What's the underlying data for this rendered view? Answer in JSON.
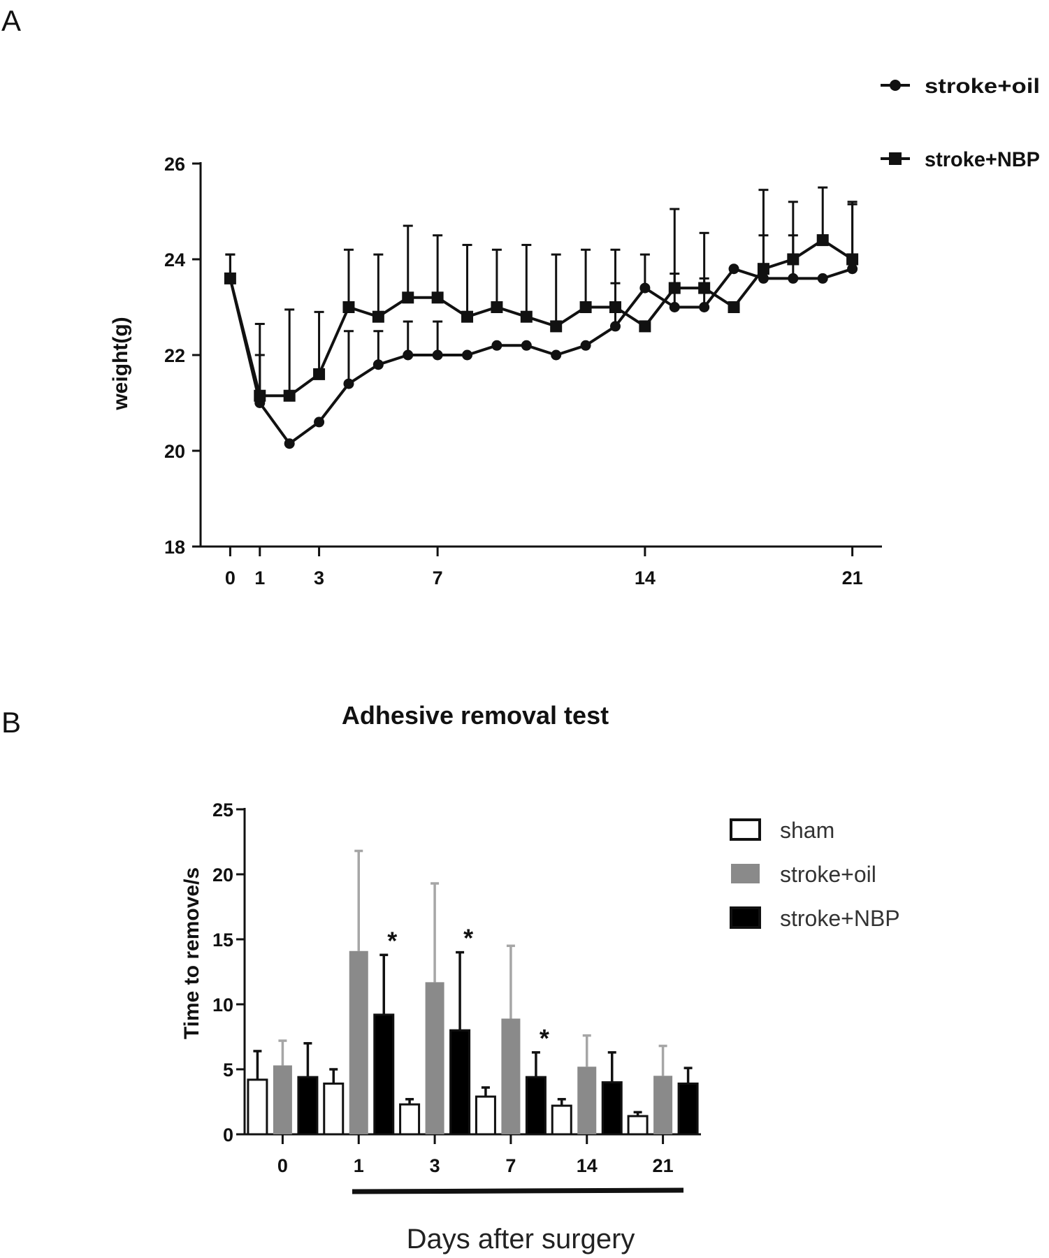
{
  "panel_a_letter": "A",
  "panel_b_letter": "B",
  "colors": {
    "sham": "#ffffff",
    "stroke_oil": "#8a8a8a",
    "stroke_nbp": "#000000",
    "line": "#111111"
  },
  "chart_data": [
    {
      "type": "line",
      "ylabel": "weight(g)",
      "xlabel": "",
      "ylim": [
        18,
        26
      ],
      "yticks": [
        18,
        20,
        22,
        24,
        26
      ],
      "xlim": [
        -1,
        22
      ],
      "xticks": [
        0,
        1,
        3,
        7,
        14,
        21
      ],
      "legend_position": "top-right",
      "x": [
        0,
        1,
        2,
        3,
        4,
        5,
        6,
        7,
        8,
        9,
        10,
        11,
        12,
        13,
        14,
        15,
        16,
        17,
        18,
        19,
        20,
        21
      ],
      "series": [
        {
          "name": "stroke+oil",
          "marker": "circle",
          "values": [
            23.6,
            21.0,
            20.15,
            20.6,
            21.4,
            21.8,
            22.0,
            22.0,
            22.0,
            22.2,
            22.2,
            22.0,
            22.2,
            22.6,
            23.4,
            23.0,
            23.0,
            23.8,
            23.6,
            23.6,
            23.6,
            23.8
          ],
          "errors": [
            0.5,
            1.0,
            0,
            0,
            1.1,
            0.7,
            0.7,
            0.7,
            0,
            0,
            0,
            0,
            0,
            0.9,
            0.7,
            0.7,
            0.6,
            0,
            0.9,
            0.9,
            0,
            1.4
          ]
        },
        {
          "name": "stroke+NBP",
          "marker": "square",
          "values": [
            23.6,
            21.15,
            21.15,
            21.6,
            23.0,
            22.8,
            23.2,
            23.2,
            22.8,
            23.0,
            22.8,
            22.6,
            23.0,
            23.0,
            22.6,
            23.4,
            23.4,
            23.0,
            23.8,
            24.0,
            24.4,
            24.0
          ],
          "errors": [
            0.5,
            1.5,
            1.8,
            1.3,
            1.2,
            1.3,
            1.5,
            1.3,
            1.5,
            1.2,
            1.5,
            1.5,
            1.2,
            1.2,
            0,
            1.65,
            1.15,
            0,
            1.65,
            1.2,
            1.1,
            1.15
          ]
        }
      ]
    },
    {
      "type": "bar",
      "title": "Adhesive removal test",
      "ylabel": "Time to remove/s",
      "xlabel": "Days after surgery",
      "categories": [
        "0",
        "1",
        "3",
        "7",
        "14",
        "21"
      ],
      "ylim": [
        0,
        25
      ],
      "yticks": [
        0,
        5,
        10,
        15,
        20,
        25
      ],
      "legend_position": "top-right",
      "series": [
        {
          "name": "sham",
          "values": [
            4.2,
            3.9,
            2.3,
            2.9,
            2.2,
            1.4
          ],
          "errors": [
            2.2,
            1.1,
            0.4,
            0.7,
            0.5,
            0.3
          ]
        },
        {
          "name": "stroke+oil",
          "values": [
            5.3,
            14.1,
            11.7,
            8.9,
            5.2,
            4.5
          ],
          "errors": [
            1.9,
            7.7,
            7.6,
            5.6,
            2.4,
            2.3
          ]
        },
        {
          "name": "stroke+NBP",
          "values": [
            4.4,
            9.2,
            8.0,
            4.4,
            4.0,
            3.9
          ],
          "errors": [
            2.6,
            4.6,
            6.0,
            1.9,
            2.3,
            1.2
          ]
        }
      ],
      "significance": [
        {
          "category": "1",
          "series": "stroke+NBP",
          "label": "*"
        },
        {
          "category": "3",
          "series": "stroke+NBP",
          "label": "*"
        },
        {
          "category": "7",
          "series": "stroke+NBP",
          "label": "*"
        }
      ]
    }
  ]
}
